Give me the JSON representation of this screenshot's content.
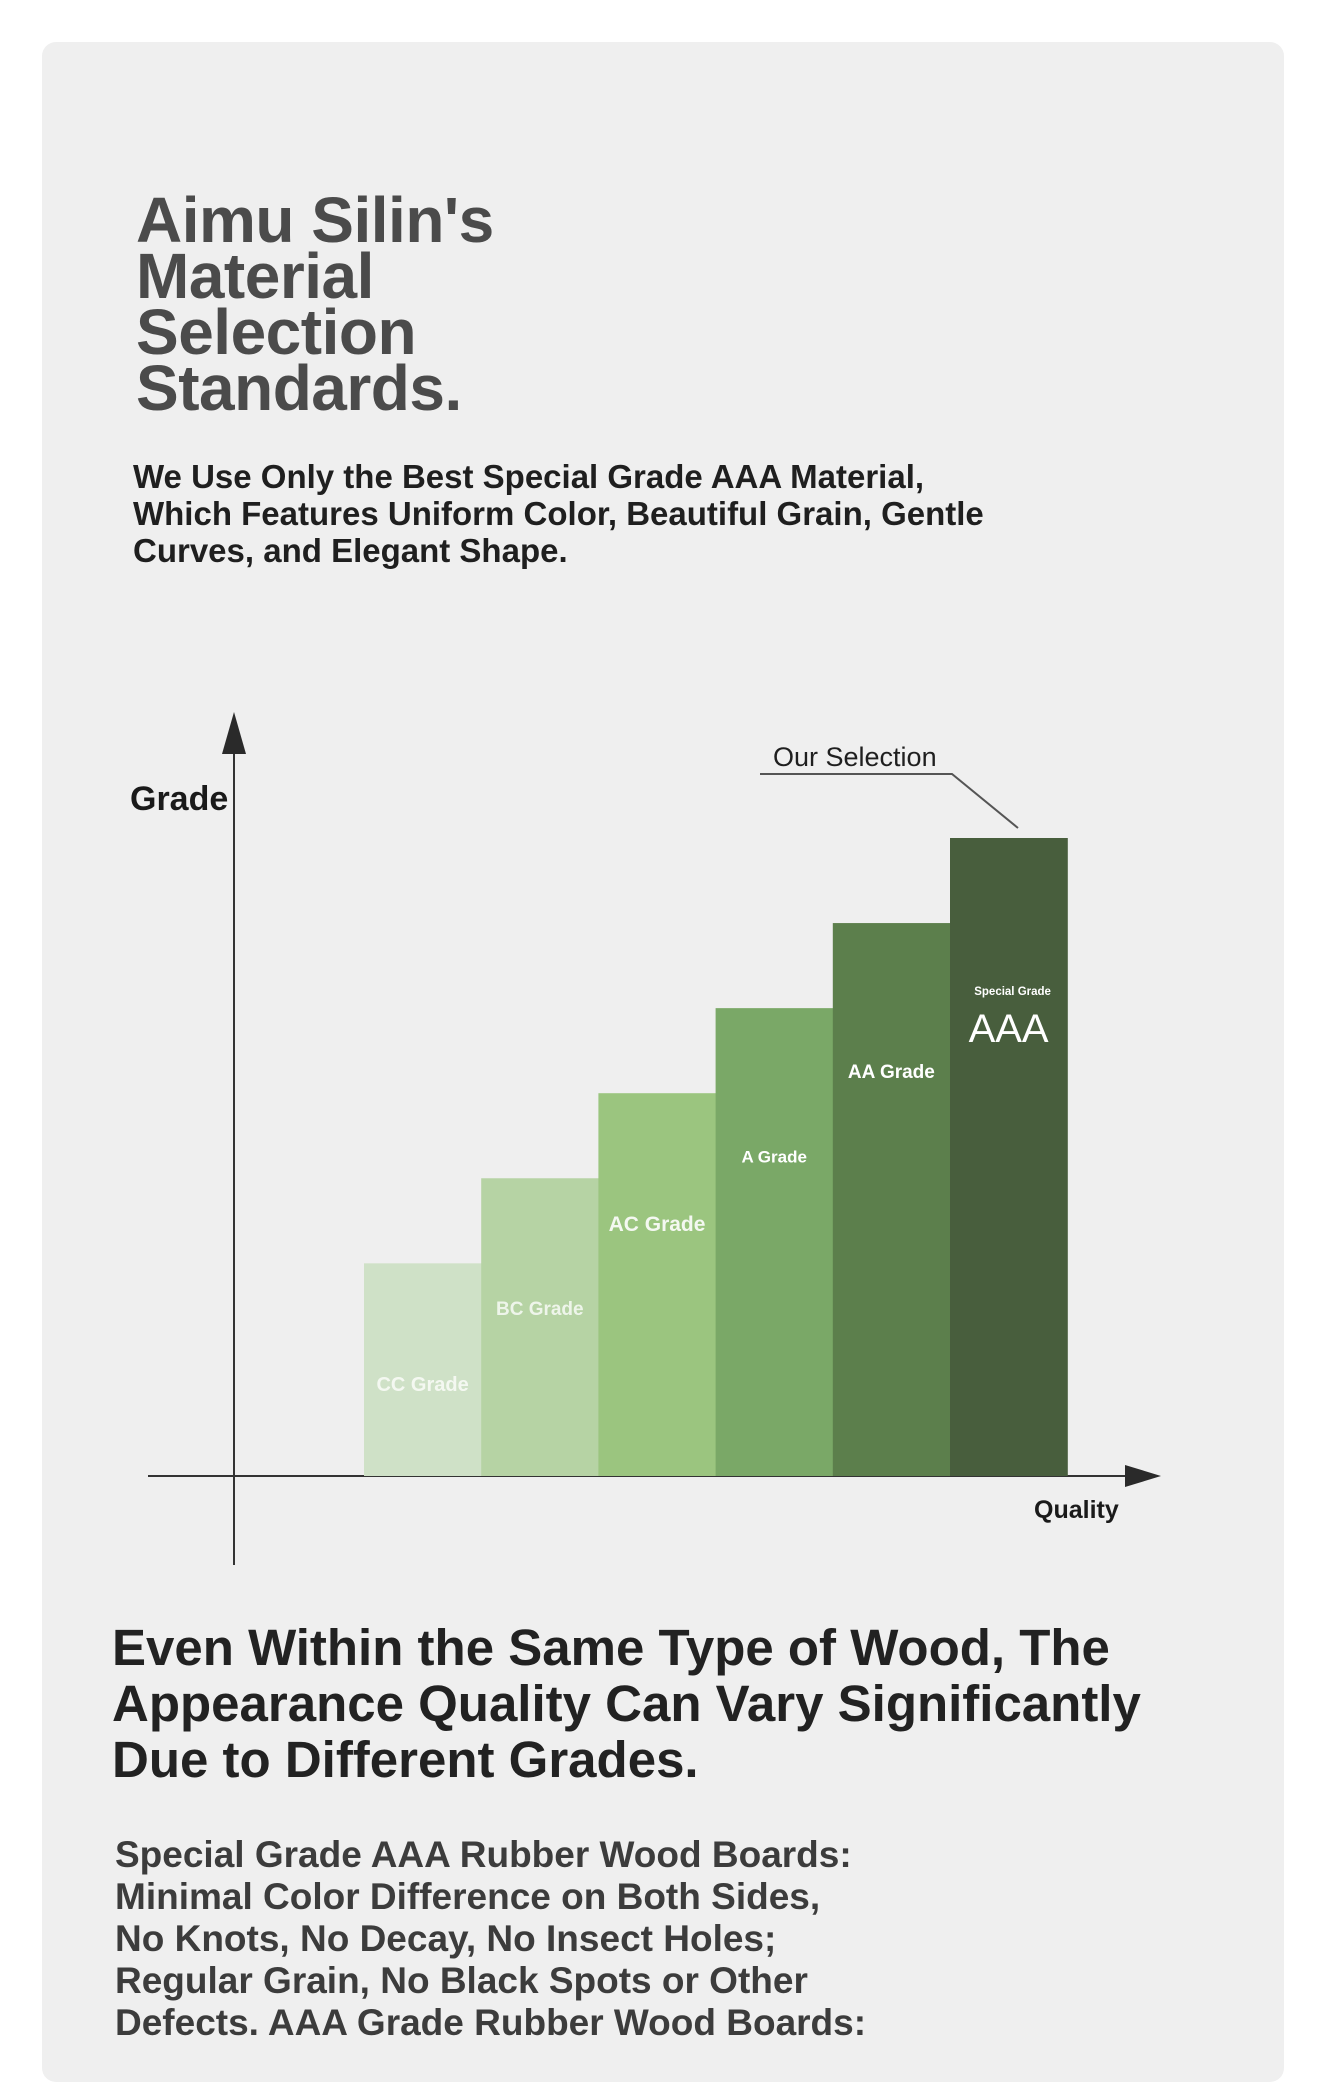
{
  "header": {
    "title_lines": [
      "Aimu Silin's",
      "Material",
      "Selection",
      "Standards."
    ],
    "subtitle_lines": [
      "We Use Only the Best Special Grade AAA Material,",
      "Which Features Uniform Color, Beautiful Grain, Gentle",
      "Curves, and Elegant Shape."
    ]
  },
  "chart_data": {
    "type": "bar",
    "ylabel": "Grade",
    "xlabel": "Quality",
    "categories": [
      "CC Grade",
      "BC Grade",
      "AC Grade",
      "A Grade",
      "AA Grade",
      "Special Grade AAA"
    ],
    "values": [
      1,
      2,
      3,
      4,
      5,
      6
    ],
    "annotation": "Our Selection",
    "highlight_prefix": "Special Grade",
    "highlight_big": "AAA",
    "colors": [
      "#cfe1c7",
      "#b6d3a4",
      "#9bc57f",
      "#7aa867",
      "#5c7f4c",
      "#485e3d"
    ],
    "axis_color": "#333333"
  },
  "section2": {
    "heading_lines": [
      "Even Within the Same Type of Wood, The",
      "Appearance Quality Can Vary Significantly",
      "Due to Different Grades."
    ],
    "paragraph_lines": [
      "Special Grade AAA Rubber Wood Boards:",
      "Minimal Color Difference on Both Sides,",
      "No Knots, No Decay, No Insect Holes;",
      "Regular Grain, No Black Spots or Other",
      "Defects. AAA Grade Rubber Wood Boards:"
    ]
  }
}
